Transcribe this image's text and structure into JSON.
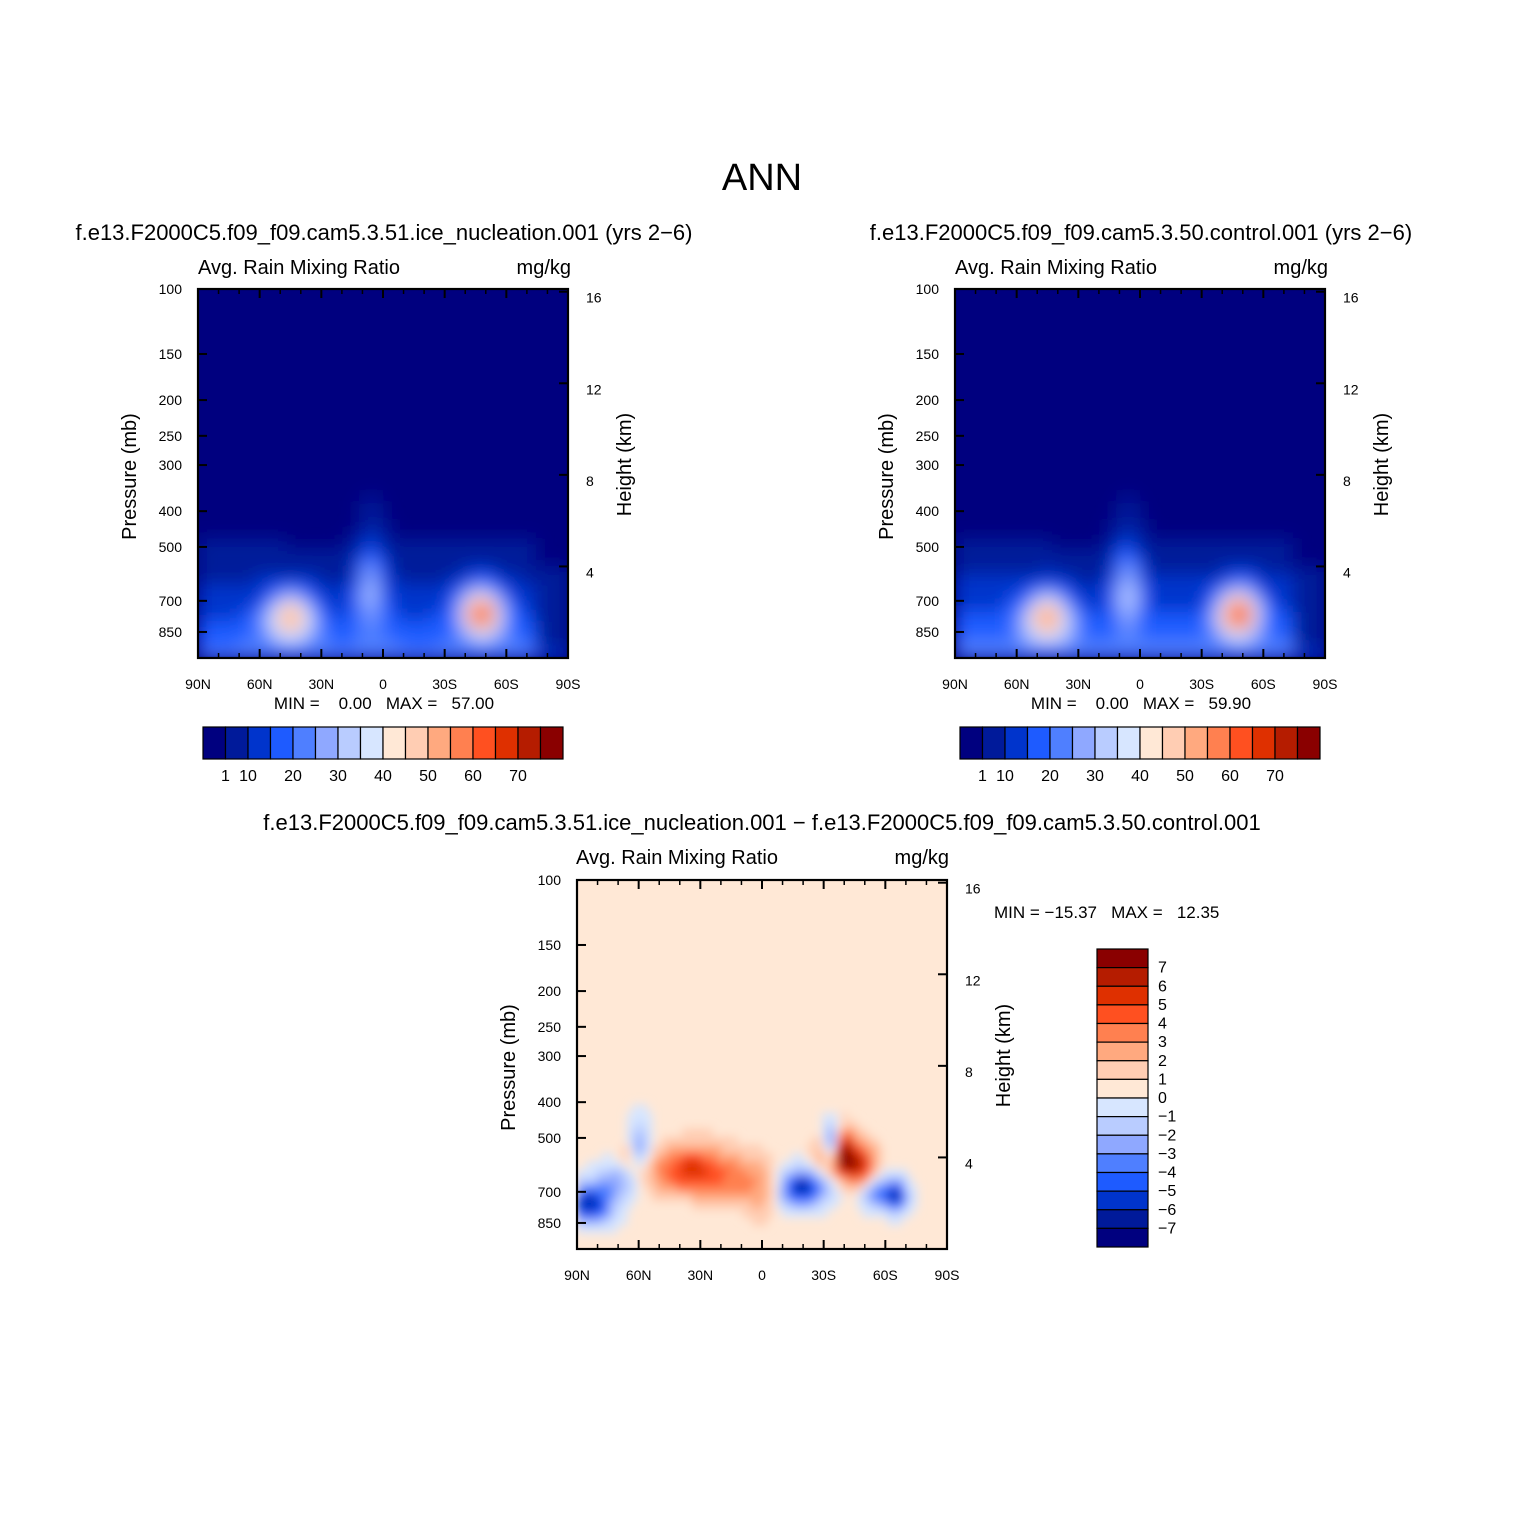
{
  "page_title": "ANN",
  "panels": [
    {
      "title": "f.e13.F2000C5.f09_f09.cam5.3.51.ice_nucleation.001 (yrs 2−6)",
      "variable_label": "Avg. Rain Mixing Ratio",
      "units_label": "mg/kg",
      "min_max_text": "MIN =    0.00   MAX =   57.00",
      "field": "high_ice"
    },
    {
      "title": "f.e13.F2000C5.f09_f09.cam5.3.50.control.001 (yrs 2−6)",
      "variable_label": "Avg. Rain Mixing Ratio",
      "units_label": "mg/kg",
      "min_max_text": "MIN =    0.00   MAX =   59.90",
      "field": "high_control"
    },
    {
      "title": "f.e13.F2000C5.f09_f09.cam5.3.51.ice_nucleation.001 − f.e13.F2000C5.f09_f09.cam5.3.50.control.001",
      "variable_label": "Avg. Rain Mixing Ratio",
      "units_label": "mg/kg",
      "min_max_text": "MIN = −15.37   MAX =   12.35",
      "field": "difference"
    }
  ],
  "chart_data": [
    {
      "type": "heatmap",
      "title": "f.e13.F2000C5.f09_f09.cam5.3.51.ice_nucleation.001 (yrs 2−6)",
      "subtitle": "Avg. Rain Mixing Ratio",
      "units": "mg/kg",
      "xlabel": "",
      "ylabel": "Pressure (mb)",
      "ylabel_right": "Height (km)",
      "x_ticks": [
        "90N",
        "60N",
        "30N",
        "0",
        "30S",
        "60S",
        "90S"
      ],
      "y_ticks": [
        100,
        150,
        200,
        250,
        300,
        400,
        500,
        700,
        850
      ],
      "y_ticks_right": [
        16,
        12,
        8,
        4
      ],
      "y_scale": "log",
      "ylim": [
        100,
        1000
      ],
      "min": 0.0,
      "max": 57.0,
      "colorbar_labels": [
        "1",
        "10",
        "20",
        "30",
        "40",
        "50",
        "60",
        "70"
      ],
      "colorbar_colors": [
        "#00007f",
        "#001a9a",
        "#0034cc",
        "#1e5bff",
        "#4f7fff",
        "#8fa8ff",
        "#b9ccff",
        "#d7e6ff",
        "#ffe8d6",
        "#ffcdb3",
        "#ffa97f",
        "#ff8050",
        "#ff5020",
        "#df3000",
        "#b51c00",
        "#8a0000"
      ]
    },
    {
      "type": "heatmap",
      "title": "f.e13.F2000C5.f09_f09.cam5.3.50.control.001 (yrs 2−6)",
      "subtitle": "Avg. Rain Mixing Ratio",
      "units": "mg/kg",
      "xlabel": "",
      "ylabel": "Pressure (mb)",
      "ylabel_right": "Height (km)",
      "x_ticks": [
        "90N",
        "60N",
        "30N",
        "0",
        "30S",
        "60S",
        "90S"
      ],
      "y_ticks": [
        100,
        150,
        200,
        250,
        300,
        400,
        500,
        700,
        850
      ],
      "y_ticks_right": [
        16,
        12,
        8,
        4
      ],
      "y_scale": "log",
      "ylim": [
        100,
        1000
      ],
      "min": 0.0,
      "max": 59.9,
      "colorbar_labels": [
        "1",
        "10",
        "20",
        "30",
        "40",
        "50",
        "60",
        "70"
      ],
      "colorbar_colors": [
        "#00007f",
        "#001a9a",
        "#0034cc",
        "#1e5bff",
        "#4f7fff",
        "#8fa8ff",
        "#b9ccff",
        "#d7e6ff",
        "#ffe8d6",
        "#ffcdb3",
        "#ffa97f",
        "#ff8050",
        "#ff5020",
        "#df3000",
        "#b51c00",
        "#8a0000"
      ]
    },
    {
      "type": "heatmap",
      "title": "f.e13.F2000C5.f09_f09.cam5.3.51.ice_nucleation.001 − f.e13.F2000C5.f09_f09.cam5.3.50.control.001",
      "subtitle": "Avg. Rain Mixing Ratio",
      "units": "mg/kg",
      "xlabel": "",
      "ylabel": "Pressure (mb)",
      "ylabel_right": "Height (km)",
      "x_ticks": [
        "90N",
        "60N",
        "30N",
        "0",
        "30S",
        "60S",
        "90S"
      ],
      "y_ticks": [
        100,
        150,
        200,
        250,
        300,
        400,
        500,
        700,
        850
      ],
      "y_ticks_right": [
        16,
        12,
        8,
        4
      ],
      "y_scale": "log",
      "ylim": [
        100,
        1000
      ],
      "min": -15.37,
      "max": 12.35,
      "colorbar_labels": [
        "7",
        "6",
        "5",
        "4",
        "3",
        "2",
        "1",
        "0",
        "−1",
        "−2",
        "−3",
        "−4",
        "−5",
        "−6",
        "−7"
      ],
      "colorbar_colors": [
        "#8a0000",
        "#b51c00",
        "#df3000",
        "#ff5020",
        "#ff8050",
        "#ffa97f",
        "#ffcdb3",
        "#ffe8d6",
        "#d7e6ff",
        "#b9ccff",
        "#8fa8ff",
        "#4f7fff",
        "#1e5bff",
        "#0034cc",
        "#001a9a",
        "#00007f"
      ]
    }
  ]
}
